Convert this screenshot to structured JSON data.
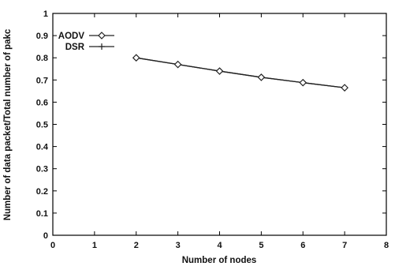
{
  "chart_data": {
    "type": "line",
    "title": "",
    "xlabel": "Number of nodes",
    "ylabel": "Number of data packet/Total number of pakc",
    "xlim": [
      0,
      8
    ],
    "ylim": [
      0,
      1
    ],
    "x_ticks": [
      "0",
      "1",
      "2",
      "3",
      "4",
      "5",
      "6",
      "7",
      "8"
    ],
    "y_ticks": [
      "0",
      "0.1",
      "0.2",
      "0.3",
      "0.4",
      "0.5",
      "0.6",
      "0.7",
      "0.8",
      "0.9",
      "1"
    ],
    "grid": false,
    "legend_position": "top-left",
    "series": [
      {
        "name": "AODV",
        "marker": "diamond",
        "x": [
          2,
          3,
          4,
          5,
          6,
          7
        ],
        "y": [
          0.8,
          0.77,
          0.74,
          0.712,
          0.688,
          0.665
        ]
      },
      {
        "name": "DSR",
        "marker": "plus",
        "x": [
          2,
          3,
          4,
          5,
          6,
          7
        ],
        "y": [
          0.8,
          0.77,
          0.74,
          0.712,
          0.688,
          0.665
        ]
      }
    ],
    "colors": {
      "line": "#222222",
      "axis": "#000000"
    }
  }
}
